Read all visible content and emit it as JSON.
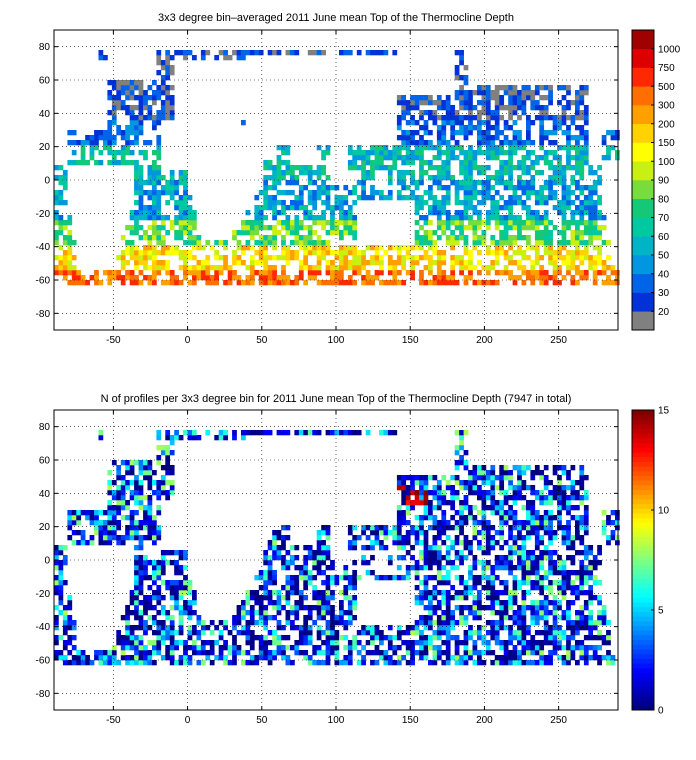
{
  "chart_data": [
    {
      "type": "heatmap",
      "title": "3x3 degree bin–averaged 2011 June mean Top of the Thermocline Depth",
      "xlabel": "",
      "ylabel": "",
      "xlim": [
        -90,
        290
      ],
      "ylim": [
        -90,
        90
      ],
      "x_ticks": [
        -50,
        0,
        50,
        100,
        150,
        200,
        250
      ],
      "y_ticks": [
        80,
        60,
        40,
        20,
        0,
        -20,
        -40,
        -60,
        -80
      ],
      "grid": true,
      "colorbar": {
        "type": "discrete",
        "labels": [
          "20",
          "30",
          "40",
          "50",
          "60",
          "70",
          "80",
          "90",
          "100",
          "150",
          "200",
          "300",
          "500",
          "750",
          "1000"
        ],
        "colors": [
          "#808080",
          "#0032d8",
          "#0064e8",
          "#0096e0",
          "#00b4c8",
          "#00c8a0",
          "#14c878",
          "#78dc3c",
          "#c8f014",
          "#ffff00",
          "#ffd200",
          "#ffa000",
          "#ff6e00",
          "#ff2800",
          "#dc0000",
          "#a00000"
        ]
      },
      "land_color": "#ffffff",
      "no_data_color": "#ffffff",
      "data_description": ""
    },
    {
      "type": "heatmap",
      "title": "N of profiles per 3x3 degree bin for 2011 June mean Top of the Thermocline Depth  (7947 in total)",
      "xlabel": "",
      "ylabel": "",
      "xlim": [
        -90,
        290
      ],
      "ylim": [
        -90,
        90
      ],
      "x_ticks": [
        -50,
        0,
        50,
        100,
        150,
        200,
        250
      ],
      "y_ticks": [
        80,
        60,
        40,
        20,
        0,
        -20,
        -40,
        -60,
        -80
      ],
      "grid": true,
      "total_profiles": 7947,
      "colorbar": {
        "type": "continuous",
        "colormap": "jet",
        "min": 0,
        "max": 15,
        "ticks": [
          "0",
          "5",
          "10",
          "15"
        ]
      },
      "land_color": "#ffffff",
      "no_data_color": "#ffffff"
    }
  ]
}
